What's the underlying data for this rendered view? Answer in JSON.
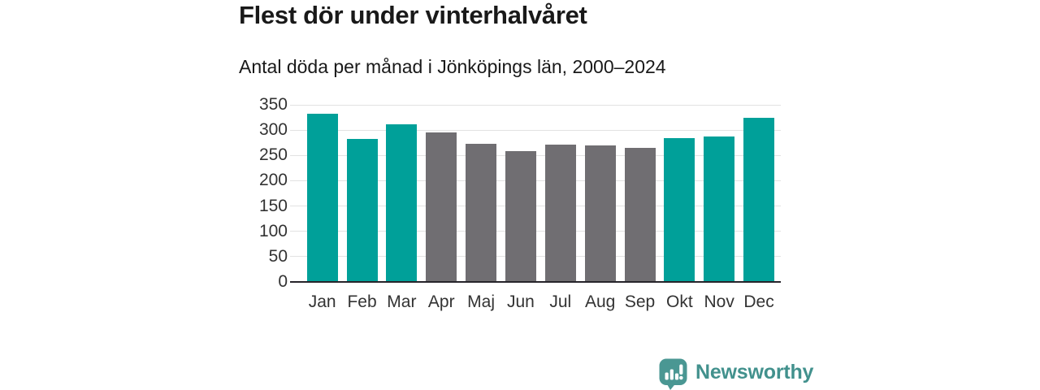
{
  "header": {
    "title": "Flest dör under vinterhalvåret",
    "subtitle": "Antal döda per månad i Jönköpings län, 2000–2024"
  },
  "chart_data": {
    "type": "bar",
    "title": "Flest dör under vinterhalvåret",
    "subtitle": "Antal döda per månad i Jönköpings län, 2000–2024",
    "categories": [
      "Jan",
      "Feb",
      "Mar",
      "Apr",
      "Maj",
      "Jun",
      "Jul",
      "Aug",
      "Sep",
      "Okt",
      "Nov",
      "Dec"
    ],
    "values": [
      332,
      282,
      311,
      295,
      273,
      259,
      272,
      269,
      265,
      284,
      288,
      325
    ],
    "highlighted": [
      true,
      true,
      true,
      false,
      false,
      false,
      false,
      false,
      false,
      true,
      true,
      true
    ],
    "colors": {
      "highlight": "#00A099",
      "default": "#706E72"
    },
    "xlabel": "",
    "ylabel": "",
    "ylim": [
      0,
      350
    ],
    "yticks": [
      0,
      50,
      100,
      150,
      200,
      250,
      300,
      350
    ],
    "grid": true,
    "legend": "none"
  },
  "footer": {
    "brand": "Newsworthy",
    "brand_color": "#42918D",
    "icon_color": "#4A9793"
  }
}
